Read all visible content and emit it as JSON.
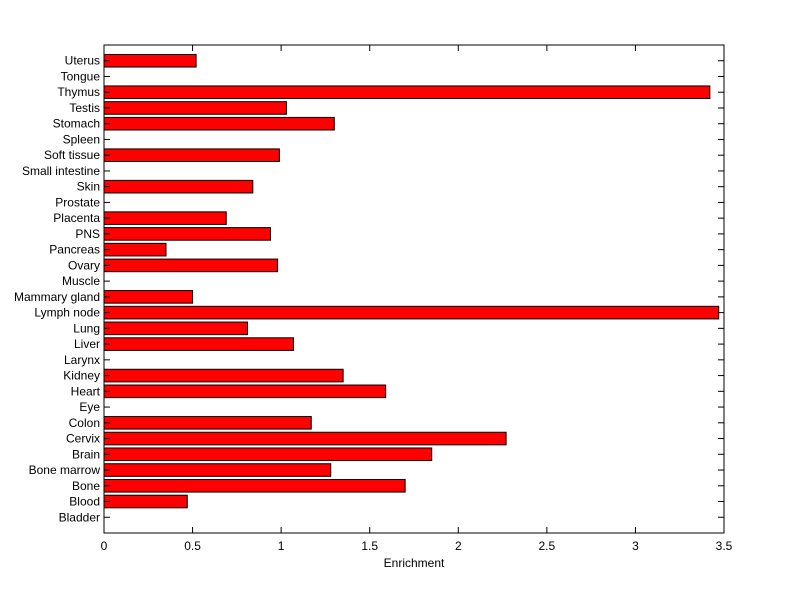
{
  "chart_data": {
    "type": "bar",
    "orientation": "horizontal",
    "title": "",
    "xlabel": "Enrichment",
    "ylabel": "",
    "xlim": [
      0,
      3.5
    ],
    "xticks": [
      "0",
      "0.5",
      "1",
      "1.5",
      "2",
      "2.5",
      "3",
      "3.5"
    ],
    "grid": false,
    "legend": "none",
    "bar_color": "#ff0000",
    "categories": [
      "Bladder",
      "Blood",
      "Bone",
      "Bone marrow",
      "Brain",
      "Cervix",
      "Colon",
      "Eye",
      "Heart",
      "Kidney",
      "Larynx",
      "Liver",
      "Lung",
      "Lymph node",
      "Mammary gland",
      "Muscle",
      "Ovary",
      "Pancreas",
      "PNS",
      "Placenta",
      "Prostate",
      "Skin",
      "Small intestine",
      "Soft tissue",
      "Spleen",
      "Stomach",
      "Testis",
      "Thymus",
      "Tongue",
      "Uterus"
    ],
    "values": [
      0,
      0.47,
      1.7,
      1.28,
      1.85,
      2.27,
      1.17,
      0,
      1.59,
      1.35,
      0,
      1.07,
      0.81,
      3.47,
      0.5,
      0,
      0.98,
      0.35,
      0.94,
      0.69,
      0,
      0.84,
      0,
      0.99,
      0,
      1.3,
      1.03,
      3.42,
      0,
      0.52
    ]
  }
}
